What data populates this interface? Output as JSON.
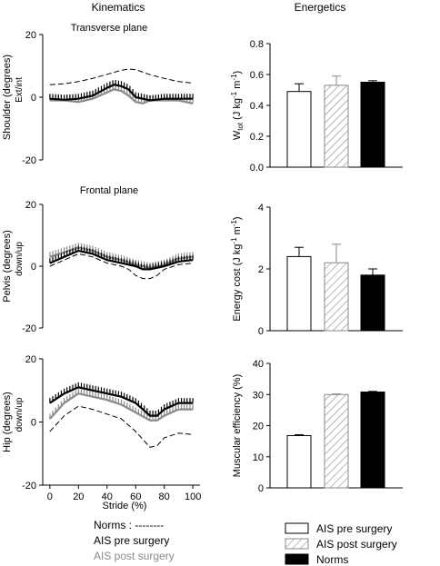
{
  "headings": {
    "kinematics": "Kinematics",
    "energetics": "Energetics"
  },
  "colors": {
    "pre": "#000000",
    "post": "#8a8a8a",
    "norm": "#000000"
  },
  "kinematics": [
    {
      "subtitle": "Transverse plane",
      "ylabel": "Shoulder (degrees)",
      "ysub": "Ext/int",
      "ylim": [
        -20,
        20
      ],
      "yticks": [
        "20",
        "0",
        "-20"
      ],
      "norm": [
        [
          0,
          4
        ],
        [
          10,
          4.3
        ],
        [
          20,
          5
        ],
        [
          30,
          6
        ],
        [
          40,
          7.3
        ],
        [
          50,
          8.6
        ],
        [
          55,
          9
        ],
        [
          60,
          8.8
        ],
        [
          70,
          7.2
        ],
        [
          80,
          6
        ],
        [
          90,
          5
        ],
        [
          100,
          4.5
        ]
      ],
      "pre": [
        [
          0,
          -0.5
        ],
        [
          10,
          -0.8
        ],
        [
          20,
          -0.5
        ],
        [
          30,
          0.5
        ],
        [
          40,
          3
        ],
        [
          45,
          4
        ],
        [
          50,
          3.5
        ],
        [
          55,
          2.5
        ],
        [
          60,
          0
        ],
        [
          70,
          -1
        ],
        [
          80,
          -0.5
        ],
        [
          90,
          -0.5
        ],
        [
          100,
          -0.5
        ]
      ],
      "post": [
        [
          0,
          -1
        ],
        [
          10,
          -1
        ],
        [
          20,
          -1.5
        ],
        [
          30,
          -0.5
        ],
        [
          40,
          1.5
        ],
        [
          45,
          2.5
        ],
        [
          50,
          2
        ],
        [
          55,
          0.5
        ],
        [
          60,
          -1.5
        ],
        [
          65,
          -2
        ],
        [
          70,
          -1
        ],
        [
          80,
          -1
        ],
        [
          90,
          -1
        ],
        [
          100,
          -2
        ]
      ]
    },
    {
      "subtitle": "Frontal plane",
      "ylabel": "Pelvis (degrees)",
      "ysub": "down/up",
      "ylim": [
        -20,
        20
      ],
      "yticks": [
        "20",
        "0",
        "-20"
      ],
      "norm": [
        [
          0,
          0
        ],
        [
          10,
          2
        ],
        [
          20,
          4
        ],
        [
          30,
          3
        ],
        [
          40,
          1
        ],
        [
          50,
          0
        ],
        [
          55,
          -1
        ],
        [
          60,
          -3
        ],
        [
          65,
          -4
        ],
        [
          70,
          -4
        ],
        [
          75,
          -3
        ],
        [
          80,
          -1
        ],
        [
          90,
          0.5
        ],
        [
          100,
          1
        ]
      ],
      "pre": [
        [
          0,
          1
        ],
        [
          10,
          3
        ],
        [
          20,
          5
        ],
        [
          30,
          4
        ],
        [
          40,
          2
        ],
        [
          50,
          1
        ],
        [
          60,
          0
        ],
        [
          65,
          -1
        ],
        [
          70,
          -1
        ],
        [
          80,
          0
        ],
        [
          90,
          1.5
        ],
        [
          100,
          2
        ]
      ],
      "post": [
        [
          0,
          3
        ],
        [
          10,
          4.5
        ],
        [
          20,
          6
        ],
        [
          30,
          5
        ],
        [
          40,
          3
        ],
        [
          50,
          2
        ],
        [
          60,
          0.5
        ],
        [
          65,
          0
        ],
        [
          70,
          -0.5
        ],
        [
          80,
          0.5
        ],
        [
          90,
          2.5
        ],
        [
          100,
          3
        ]
      ]
    },
    {
      "subtitle": "",
      "ylabel": "Hip (degrees)",
      "ysub": "down/up",
      "ylim": [
        -20,
        20
      ],
      "yticks": [
        "20",
        "0",
        "-20"
      ],
      "norm": [
        [
          0,
          -3
        ],
        [
          10,
          2
        ],
        [
          20,
          5
        ],
        [
          30,
          4
        ],
        [
          40,
          2.5
        ],
        [
          50,
          1
        ],
        [
          60,
          -3
        ],
        [
          70,
          -8
        ],
        [
          75,
          -7.5
        ],
        [
          80,
          -5
        ],
        [
          90,
          -3.5
        ],
        [
          100,
          -4
        ]
      ],
      "pre": [
        [
          0,
          6
        ],
        [
          10,
          9
        ],
        [
          20,
          11
        ],
        [
          30,
          10
        ],
        [
          40,
          9
        ],
        [
          50,
          8
        ],
        [
          60,
          6
        ],
        [
          70,
          2
        ],
        [
          75,
          2
        ],
        [
          80,
          4
        ],
        [
          90,
          6
        ],
        [
          100,
          6
        ]
      ],
      "post": [
        [
          0,
          1
        ],
        [
          10,
          6
        ],
        [
          20,
          9
        ],
        [
          30,
          8
        ],
        [
          40,
          7
        ],
        [
          50,
          5.5
        ],
        [
          60,
          3
        ],
        [
          70,
          0.5
        ],
        [
          75,
          0.5
        ],
        [
          80,
          2
        ],
        [
          90,
          4
        ],
        [
          100,
          4
        ]
      ]
    }
  ],
  "xaxis": {
    "label": "Stride (%)",
    "ticks": [
      "0",
      "20",
      "40",
      "60",
      "80",
      "100"
    ]
  },
  "legend_kinematics": {
    "norms": "Norms : --------",
    "pre": "AIS pre surgery",
    "post": "AIS post surgery"
  },
  "chart_data": [
    {
      "type": "bar",
      "ylabel_main": "W",
      "ylabel_sub": "tot",
      "ylabel_rest": " (J kg",
      "ylabel_sup1": "-1",
      "ylabel_mid": " m",
      "ylabel_sup2": "-1",
      "ylabel_end": ")",
      "categories": [
        "AIS pre surgery",
        "AIS post surgery",
        "Norms"
      ],
      "values": [
        0.49,
        0.53,
        0.55
      ],
      "errors": [
        0.05,
        0.06,
        0.01
      ],
      "ylim": [
        0,
        0.8
      ],
      "yticks": [
        "0.8",
        "0.6",
        "0.4",
        "0.2",
        "0.0"
      ]
    },
    {
      "type": "bar",
      "ylabel_main": "Energy cost (J kg",
      "ylabel_sup1": "-1",
      "ylabel_mid": " m",
      "ylabel_sup2": "-1",
      "ylabel_end": ")",
      "categories": [
        "AIS pre surgery",
        "AIS post surgery",
        "Norms"
      ],
      "values": [
        2.4,
        2.2,
        1.8
      ],
      "errors": [
        0.3,
        0.6,
        0.2
      ],
      "ylim": [
        0,
        4
      ],
      "yticks": [
        "4",
        "2",
        "0"
      ]
    },
    {
      "type": "bar",
      "ylabel_main": "Muscular efficiency (%)",
      "categories": [
        "AIS pre surgery",
        "AIS post surgery",
        "Norms"
      ],
      "values": [
        16.8,
        30,
        30.8
      ],
      "errors": [
        0.3,
        0.2,
        0.2
      ],
      "ylim": [
        0,
        40
      ],
      "yticks": [
        "40",
        "30",
        "20",
        "10",
        "0"
      ]
    }
  ],
  "legend_energetics": [
    "AIS pre surgery",
    "AIS post surgery",
    "Norms"
  ]
}
